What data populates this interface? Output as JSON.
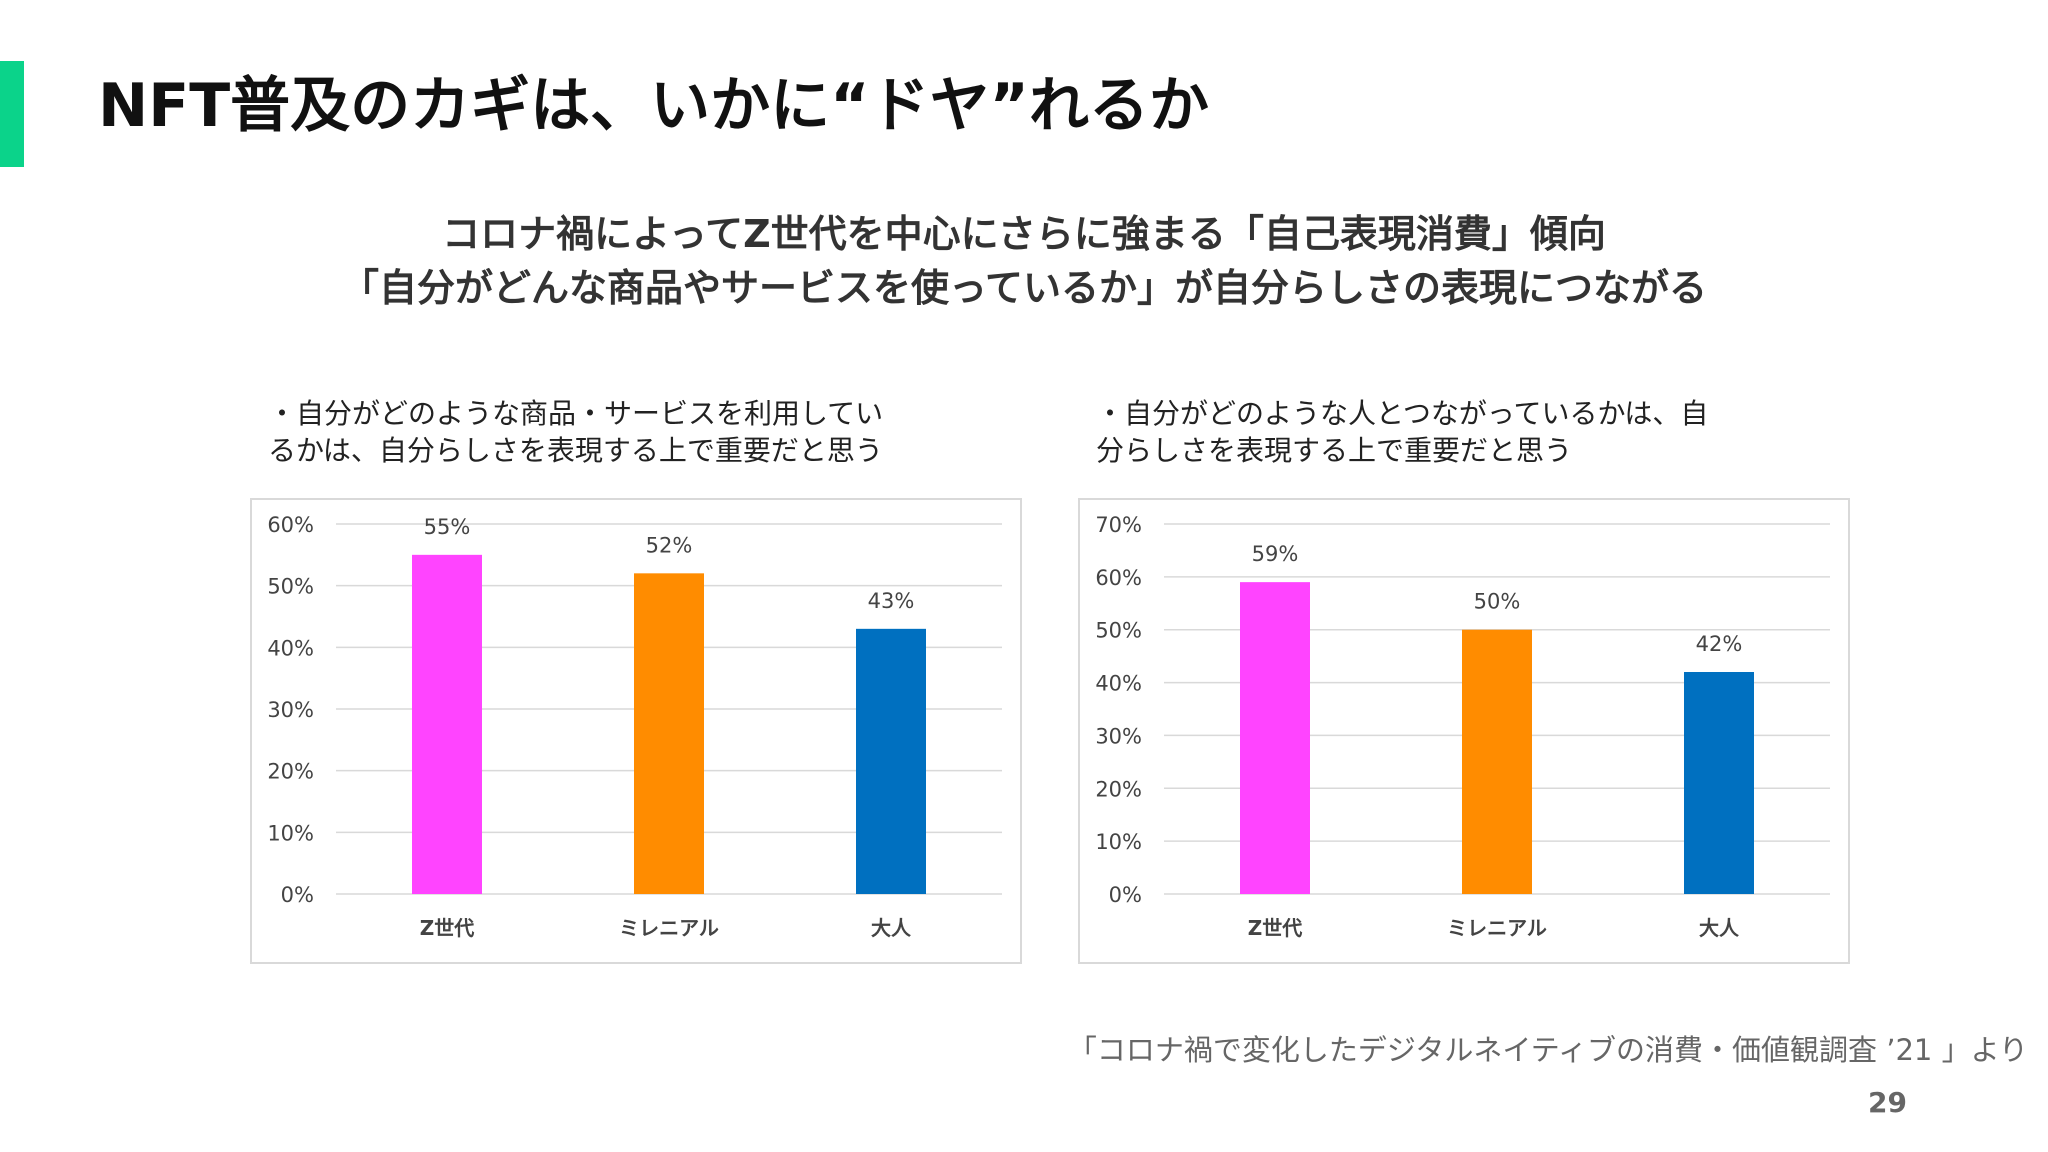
{
  "slide": {
    "title": "NFT普及のカギは、いかに“ドヤ”れるか",
    "subtitle_line1": "コロナ禍によってZ世代を中心にさらに強まる「自己表現消費」傾向",
    "subtitle_line2": "「自分がどんな商品やサービスを使っているか」が自分らしさの表現につながる",
    "source": "「コロナ禍で変化したデジタルネイティブの消費・価値観調査 ’21 」より",
    "page_number": "29",
    "accent_color": "#0bd38a"
  },
  "charts": [
    {
      "caption_line1": "・自分がどのような商品・サービスを利用してい",
      "caption_line2": "るかは、自分らしさを表現する上で重要だと思う"
    },
    {
      "caption_line1": "・自分がどのような人とつながっているかは、自",
      "caption_line2": "分らしさを表現する上で重要だと思う"
    }
  ],
  "chart_data": [
    {
      "type": "bar",
      "categories": [
        "Z世代",
        "ミレニアル",
        "大人"
      ],
      "values": [
        55,
        52,
        43
      ],
      "data_labels": [
        "55%",
        "52%",
        "43%"
      ],
      "colors": [
        "#ff44ff",
        "#ff8c00",
        "#0070c0"
      ],
      "ylim": [
        0,
        60
      ],
      "yticks": [
        0,
        10,
        20,
        30,
        40,
        50,
        60
      ],
      "ytick_labels": [
        "0%",
        "10%",
        "20%",
        "30%",
        "40%",
        "50%",
        "60%"
      ],
      "grid": true,
      "legend": "none"
    },
    {
      "type": "bar",
      "categories": [
        "Z世代",
        "ミレニアル",
        "大人"
      ],
      "values": [
        59,
        50,
        42
      ],
      "data_labels": [
        "59%",
        "50%",
        "42%"
      ],
      "colors": [
        "#ff44ff",
        "#ff8c00",
        "#0070c0"
      ],
      "ylim": [
        0,
        70
      ],
      "yticks": [
        0,
        10,
        20,
        30,
        40,
        50,
        60,
        70
      ],
      "ytick_labels": [
        "0%",
        "10%",
        "20%",
        "30%",
        "40%",
        "50%",
        "60%",
        "70%"
      ],
      "grid": true,
      "legend": "none"
    }
  ]
}
